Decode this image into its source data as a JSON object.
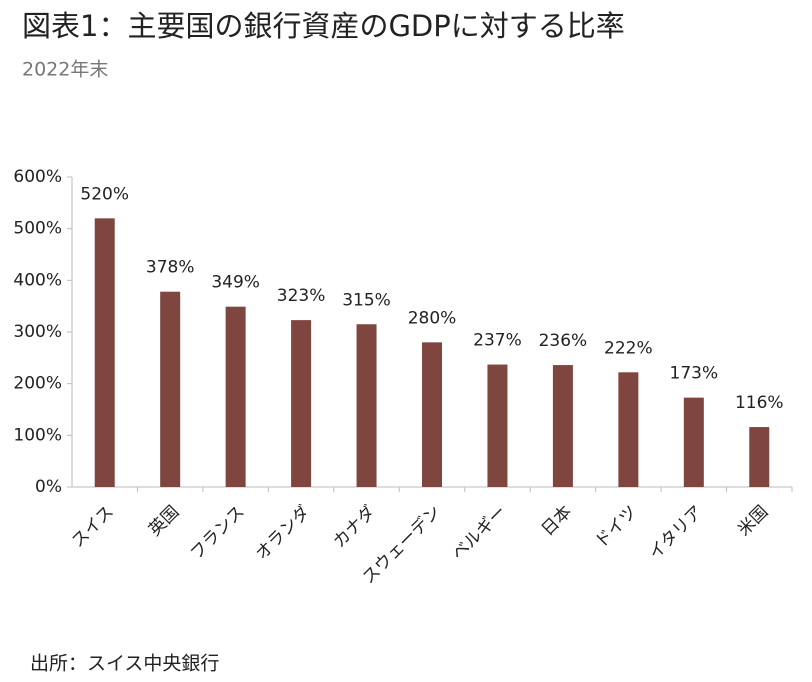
{
  "chart_data": {
    "type": "bar",
    "title": "図表1：主要国の銀行資産のGDPに対する比率",
    "subtitle": "2022年末",
    "source": "出所：スイス中央銀行",
    "categories": [
      "スイス",
      "英国",
      "フランス",
      "オランダ",
      "カナダ",
      "スウェーデン",
      "ベルギー",
      "日本",
      "ドイツ",
      "イタリア",
      "米国"
    ],
    "values": [
      520,
      378,
      349,
      323,
      315,
      280,
      237,
      236,
      222,
      173,
      116
    ],
    "value_labels": [
      "520%",
      "378%",
      "349%",
      "323%",
      "315%",
      "280%",
      "237%",
      "236%",
      "222%",
      "173%",
      "116%"
    ],
    "color": "#7f4640",
    "ylim": [
      0,
      600
    ],
    "yticks": [
      {
        "value": 0,
        "label": "0%"
      },
      {
        "value": 100,
        "label": "100%"
      },
      {
        "value": 200,
        "label": "200%"
      },
      {
        "value": 300,
        "label": "300%"
      },
      {
        "value": 400,
        "label": "400%"
      },
      {
        "value": 500,
        "label": "500%"
      },
      {
        "value": 600,
        "label": "600%"
      }
    ],
    "grid": false
  }
}
